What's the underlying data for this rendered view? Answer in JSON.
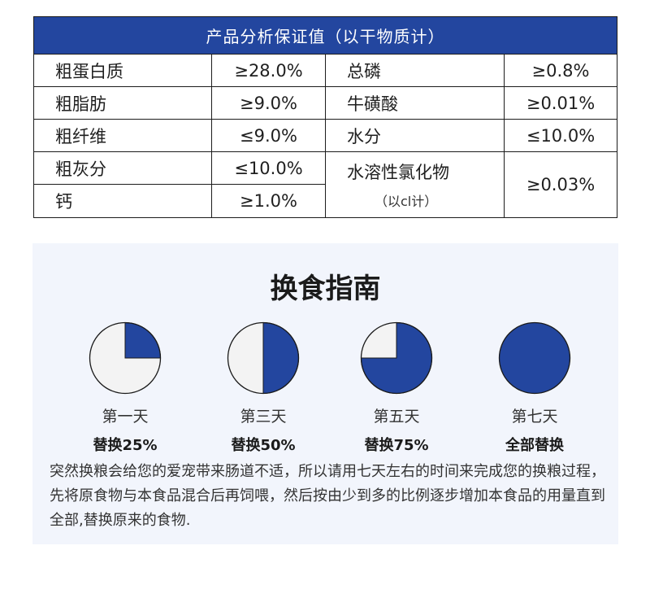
{
  "table": {
    "title": "产品分析保证值（以干物质计）",
    "left": [
      {
        "name": "粗蛋白质",
        "value": "≥28.0%"
      },
      {
        "name": "粗脂肪",
        "value": "≥9.0%"
      },
      {
        "name": "粗纤维",
        "value": "≤9.0%"
      },
      {
        "name": "粗灰分",
        "value": "≤10.0%"
      },
      {
        "name": "钙",
        "value": "≥1.0%"
      }
    ],
    "right": [
      {
        "name": "总磷",
        "value": "≥0.8%"
      },
      {
        "name": "牛磺酸",
        "value": "≥0.01%"
      },
      {
        "name": "水分",
        "value": "≤10.0%"
      },
      {
        "name": "水溶性氯化物",
        "note": "（以cl计）",
        "value": "≥0.03%"
      }
    ]
  },
  "guide": {
    "title": "换食指南",
    "steps": [
      {
        "day": "第一天",
        "label": "替换25%",
        "fraction": 0.25
      },
      {
        "day": "第三天",
        "label": "替换50%",
        "fraction": 0.5
      },
      {
        "day": "第五天",
        "label": "替换75%",
        "fraction": 0.75
      },
      {
        "day": "第七天",
        "label": "全部替换",
        "fraction": 1.0
      }
    ],
    "description": "突然换粮会给您的爱宠带来肠道不适，所以请用七天左右的时间来完成您的换粮过程，先将原食物与本食品混合后再饲喂，然后按由少到多的比例逐步增加本食品的用量直到全部,替换原来的食物."
  },
  "colors": {
    "accent": "#23469f",
    "pie_empty": "#f3f3f3",
    "card_bg": "#f2f5fc"
  }
}
